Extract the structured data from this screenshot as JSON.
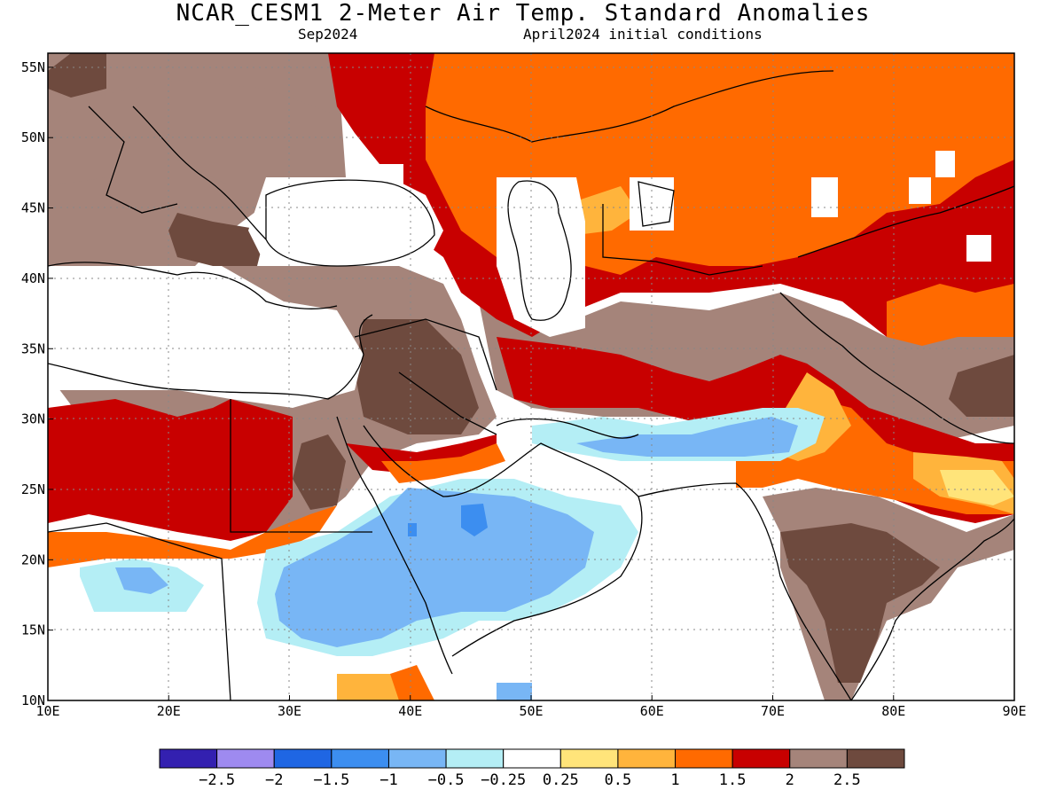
{
  "title": "NCAR_CESM1 2-Meter Air Temp. Standard Anomalies",
  "valid_month": "Sep2024",
  "init_conditions": "April2024 initial conditions",
  "map": {
    "lon_range": [
      10,
      90
    ],
    "lat_range": [
      10,
      56
    ],
    "lon_ticks": [
      "10E",
      "20E",
      "30E",
      "40E",
      "50E",
      "60E",
      "70E",
      "80E",
      "90E"
    ],
    "lat_ticks": [
      "10N",
      "15N",
      "20N",
      "25N",
      "30N",
      "35N",
      "40N",
      "45N",
      "50N",
      "55N"
    ],
    "grid": "dotted"
  },
  "colorbar": {
    "colors": [
      "#3320b0",
      "#9e8af0",
      "#1f66e3",
      "#3c8ef0",
      "#78b6f5",
      "#b4eef5",
      "#ffffff",
      "#ffe47a",
      "#ffb43c",
      "#ff6a00",
      "#c80000",
      "#a5847a",
      "#6e4a3e"
    ],
    "labels": [
      "-2.5",
      "-2",
      "-1.5",
      "-1",
      "-0.5",
      "-0.25",
      "0.25",
      "0.5",
      "1",
      "1.5",
      "2",
      "2.5"
    ]
  }
}
